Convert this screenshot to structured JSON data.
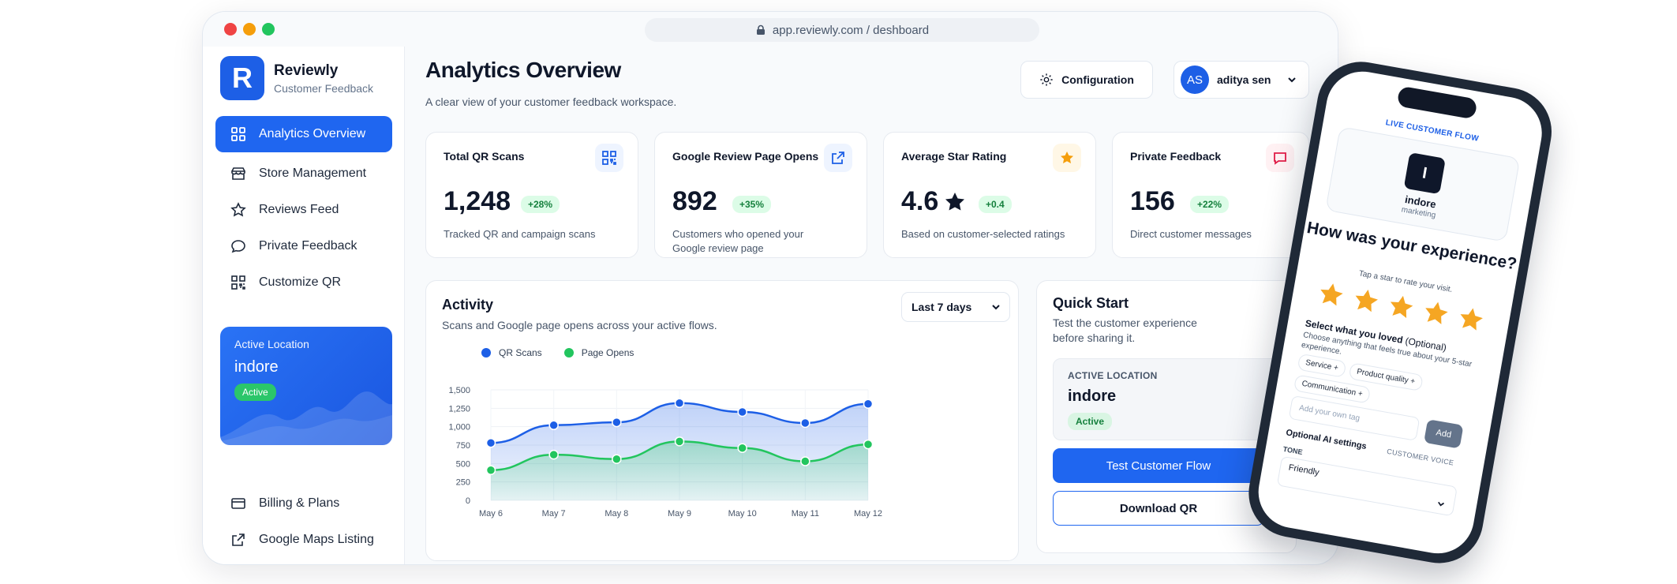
{
  "browser": {
    "url": "app.reviewly.com / deshboard"
  },
  "brand": {
    "name": "Reviewly",
    "subtitle": "Customer Feedback",
    "logo_letter": "R"
  },
  "sidebar": {
    "items": [
      {
        "label": "Analytics Overview",
        "icon": "grid-icon",
        "active": true
      },
      {
        "label": "Store Management",
        "icon": "store-icon"
      },
      {
        "label": "Reviews Feed",
        "icon": "star-icon"
      },
      {
        "label": "Private Feedback",
        "icon": "chat-bubble-icon"
      },
      {
        "label": "Customize QR",
        "icon": "qr-icon"
      }
    ],
    "location_card": {
      "label": "Active Location",
      "value": "indore",
      "status": "Active"
    },
    "bottom_items": [
      {
        "label": "Billing & Plans",
        "icon": "credit-card-icon"
      },
      {
        "label": "Google Maps Listing",
        "icon": "external-link-icon"
      }
    ]
  },
  "header": {
    "title": "Analytics Overview",
    "subtitle": "A clear view of your customer feedback workspace.",
    "config_label": "Configuration",
    "user": {
      "initials": "AS",
      "name": "aditya sen"
    }
  },
  "stats": [
    {
      "title": "Total QR Scans",
      "value": "1,248",
      "delta": "+28%",
      "desc": "Tracked QR and campaign scans",
      "icon": "qr-icon",
      "accent": "#1d5fe6"
    },
    {
      "title": "Google Review Page Opens",
      "value": "892",
      "delta": "+35%",
      "desc": "Customers who opened your Google review page",
      "icon": "external-link-icon",
      "accent": "#1d5fe6"
    },
    {
      "title": "Average Star Rating",
      "value": "4.6",
      "delta": "+0.4",
      "desc": "Based on customer-selected ratings",
      "icon": "star-icon",
      "accent": "#f59e0b"
    },
    {
      "title": "Private Feedback",
      "value": "156",
      "delta": "+22%",
      "desc": "Direct customer messages",
      "icon": "chat-bubble-icon",
      "accent": "#e11d48"
    }
  ],
  "activity": {
    "title": "Activity",
    "subtitle": "Scans and Google page opens across your active flows.",
    "range_label": "Last 7 days"
  },
  "chart_data": {
    "type": "area",
    "categories": [
      "May 6",
      "May 7",
      "May 8",
      "May 9",
      "May 10",
      "May 11",
      "May 12"
    ],
    "series": [
      {
        "name": "QR Scans",
        "values": [
          780,
          1020,
          1060,
          1320,
          1200,
          1050,
          1310
        ],
        "color": "#1d5fe6"
      },
      {
        "name": "Page Opens",
        "values": [
          410,
          620,
          560,
          800,
          710,
          530,
          760
        ],
        "color": "#22c55e"
      }
    ],
    "yticks": [
      "1,500",
      "1,250",
      "1,000",
      "750",
      "500",
      "250",
      "0"
    ],
    "ylim": [
      0,
      1500
    ],
    "grid": true,
    "legend": "top-left"
  },
  "quick_start": {
    "title": "Quick Start",
    "subtitle": "Test the customer experience before sharing it.",
    "loc_label": "ACTIVE LOCATION",
    "loc_value": "indore",
    "loc_status": "Active",
    "primary": "Test Customer Flow",
    "secondary": "Download QR"
  },
  "phone": {
    "live_label": "LIVE CUSTOMER FLOW",
    "brand_letter": "I",
    "brand_name": "indore",
    "brand_sub": "marketing",
    "question": "How was your experience?",
    "tap_hint": "Tap a star to rate your visit.",
    "select_title": "Select what you loved",
    "select_optional": "(Optional)",
    "select_sub": "Choose anything that feels true about your 5-star experience.",
    "chips": [
      "Service +",
      "Product quality +",
      "Communication +"
    ],
    "tag_placeholder": "Add your own tag",
    "add_label": "Add",
    "ai_label": "Optional AI settings",
    "voice_label": "CUSTOMER VOICE",
    "tone_label": "TONE",
    "tone_value": "Friendly"
  }
}
